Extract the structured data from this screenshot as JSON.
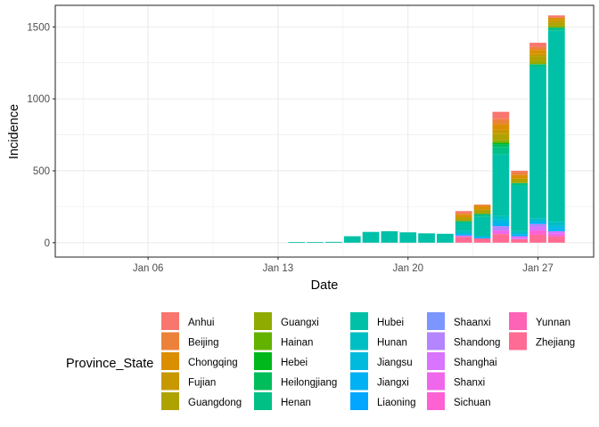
{
  "chart_data": {
    "type": "bar",
    "stacked": true,
    "xlabel": "Date",
    "ylabel": "Incidence",
    "x_axis": {
      "type": "date",
      "range": [
        "2020-01-01",
        "2020-01-30"
      ],
      "ticks": [
        {
          "date": "2020-01-06",
          "label": "Jan 06"
        },
        {
          "date": "2020-01-13",
          "label": "Jan 13"
        },
        {
          "date": "2020-01-20",
          "label": "Jan 20"
        },
        {
          "date": "2020-01-27",
          "label": "Jan 27"
        }
      ]
    },
    "y_axis": {
      "range": [
        -100,
        1650
      ],
      "ticks": [
        0,
        500,
        1000,
        1500
      ]
    },
    "grid": true,
    "legend": {
      "title": "Province_State",
      "placement": "bottom",
      "columns": [
        [
          "Anhui",
          "Beijing",
          "Chongqing",
          "Fujian",
          "Guangdong"
        ],
        [
          "Guangxi",
          "Hainan",
          "Hebei",
          "Heilongjiang",
          "Henan"
        ],
        [
          "Hubei",
          "Hunan",
          "Jiangsu",
          "Jiangxi",
          "Liaoning"
        ],
        [
          "Shaanxi",
          "Shandong",
          "Shanghai",
          "Shanxi",
          "Sichuan"
        ],
        [
          "Yunnan",
          "Zhejiang"
        ]
      ]
    },
    "colors": {
      "Anhui": "#F8766D",
      "Beijing": "#EC8239",
      "Chongqing": "#DB8E00",
      "Fujian": "#C79800",
      "Guangdong": "#AEA200",
      "Guangxi": "#8FAA00",
      "Hainan": "#64B200",
      "Hebei": "#00B81B",
      "Heilongjiang": "#00BD5C",
      "Henan": "#00C086",
      "Hubei": "#00C1A7",
      "Hunan": "#00BFC4",
      "Jiangsu": "#00BADE",
      "Jiangxi": "#00B2F3",
      "Liaoning": "#00A6FF",
      "Shaanxi": "#7C96FF",
      "Shandong": "#B385FF",
      "Shanghai": "#D874FD",
      "Shanxi": "#EF67EB",
      "Sichuan": "#FD61D3",
      "Yunnan": "#FF63B6",
      "Zhejiang": "#FF6B94"
    },
    "bars": [
      {
        "date": "2020-01-14",
        "segments": [
          {
            "name": "Hubei",
            "value": 5
          }
        ]
      },
      {
        "date": "2020-01-15",
        "segments": [
          {
            "name": "Hubei",
            "value": 5
          }
        ]
      },
      {
        "date": "2020-01-16",
        "segments": [
          {
            "name": "Hubei",
            "value": 6
          }
        ]
      },
      {
        "date": "2020-01-17",
        "segments": [
          {
            "name": "Hubei",
            "value": 45
          }
        ]
      },
      {
        "date": "2020-01-18",
        "segments": [
          {
            "name": "Hubei",
            "value": 75
          }
        ]
      },
      {
        "date": "2020-01-19",
        "segments": [
          {
            "name": "Hubei",
            "value": 80
          }
        ]
      },
      {
        "date": "2020-01-20",
        "segments": [
          {
            "name": "Hubei",
            "value": 72
          }
        ]
      },
      {
        "date": "2020-01-21",
        "segments": [
          {
            "name": "Hubei",
            "value": 65
          }
        ]
      },
      {
        "date": "2020-01-22",
        "segments": [
          {
            "name": "Hubei",
            "value": 62
          }
        ]
      },
      {
        "date": "2020-01-23",
        "segments": [
          {
            "name": "Zhejiang",
            "value": 40
          },
          {
            "name": "Shanghai",
            "value": 10
          },
          {
            "name": "Liaoning",
            "value": 10
          },
          {
            "name": "Hunan",
            "value": 20
          },
          {
            "name": "Hubei",
            "value": 55
          },
          {
            "name": "Henan",
            "value": 15
          },
          {
            "name": "Guangdong",
            "value": 25
          },
          {
            "name": "Chongqing",
            "value": 20
          },
          {
            "name": "Beijing",
            "value": 12
          },
          {
            "name": "Anhui",
            "value": 13
          }
        ]
      },
      {
        "date": "2020-01-24",
        "segments": [
          {
            "name": "Zhejiang",
            "value": 30
          },
          {
            "name": "Jiangxi",
            "value": 15
          },
          {
            "name": "Hubei",
            "value": 135
          },
          {
            "name": "Henan",
            "value": 20
          },
          {
            "name": "Guangdong",
            "value": 30
          },
          {
            "name": "Chongqing",
            "value": 25
          },
          {
            "name": "Beijing",
            "value": 10
          }
        ]
      },
      {
        "date": "2020-01-25",
        "segments": [
          {
            "name": "Zhejiang",
            "value": 60
          },
          {
            "name": "Shanxi",
            "value": 25
          },
          {
            "name": "Shandong",
            "value": 30
          },
          {
            "name": "Jiangxi",
            "value": 20
          },
          {
            "name": "Jiangsu",
            "value": 25
          },
          {
            "name": "Hunan",
            "value": 25
          },
          {
            "name": "Hubei",
            "value": 430
          },
          {
            "name": "Henan",
            "value": 50
          },
          {
            "name": "Heilongjiang",
            "value": 20
          },
          {
            "name": "Hebei",
            "value": 10
          },
          {
            "name": "Guangxi",
            "value": 20
          },
          {
            "name": "Guangdong",
            "value": 40
          },
          {
            "name": "Fujian",
            "value": 30
          },
          {
            "name": "Chongqing",
            "value": 40
          },
          {
            "name": "Beijing",
            "value": 35
          },
          {
            "name": "Anhui",
            "value": 50
          }
        ]
      },
      {
        "date": "2020-01-26",
        "segments": [
          {
            "name": "Zhejiang",
            "value": 25
          },
          {
            "name": "Shanghai",
            "value": 20
          },
          {
            "name": "Jiangxi",
            "value": 15
          },
          {
            "name": "Hunan",
            "value": 20
          },
          {
            "name": "Hubei",
            "value": 315
          },
          {
            "name": "Henan",
            "value": 20
          },
          {
            "name": "Guangdong",
            "value": 30
          },
          {
            "name": "Chongqing",
            "value": 25
          },
          {
            "name": "Beijing",
            "value": 20
          },
          {
            "name": "Anhui",
            "value": 10
          }
        ]
      },
      {
        "date": "2020-01-27",
        "segments": [
          {
            "name": "Zhejiang",
            "value": 55
          },
          {
            "name": "Sichuan",
            "value": 30
          },
          {
            "name": "Shanghai",
            "value": 25
          },
          {
            "name": "Shandong",
            "value": 20
          },
          {
            "name": "Jiangxi",
            "value": 20
          },
          {
            "name": "Hunan",
            "value": 20
          },
          {
            "name": "Hubei",
            "value": 1050
          },
          {
            "name": "Henan",
            "value": 20
          },
          {
            "name": "Guangxi",
            "value": 20
          },
          {
            "name": "Guangdong",
            "value": 35
          },
          {
            "name": "Fujian",
            "value": 20
          },
          {
            "name": "Chongqing",
            "value": 25
          },
          {
            "name": "Beijing",
            "value": 20
          },
          {
            "name": "Anhui",
            "value": 30
          }
        ]
      },
      {
        "date": "2020-01-28",
        "segments": [
          {
            "name": "Zhejiang",
            "value": 45
          },
          {
            "name": "Shanxi",
            "value": 20
          },
          {
            "name": "Shanghai",
            "value": 15
          },
          {
            "name": "Jiangxi",
            "value": 20
          },
          {
            "name": "Jiangsu",
            "value": 20
          },
          {
            "name": "Hunan",
            "value": 25
          },
          {
            "name": "Hubei",
            "value": 1330
          },
          {
            "name": "Henan",
            "value": 20
          },
          {
            "name": "Guangxi",
            "value": 15
          },
          {
            "name": "Guangdong",
            "value": 20
          },
          {
            "name": "Fujian",
            "value": 20
          },
          {
            "name": "Chongqing",
            "value": 15
          },
          {
            "name": "Anhui",
            "value": 15
          }
        ]
      }
    ]
  }
}
